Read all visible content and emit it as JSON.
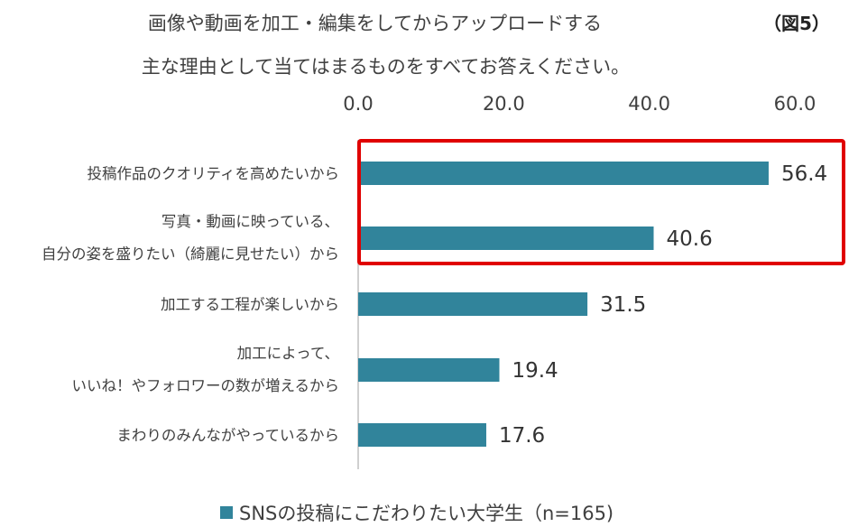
{
  "title_line1": "画像や動画を加工・編集をしてからアップロードする",
  "title_line2": "主な理由として当てはまるものをすべてお答えください。",
  "figure_label": "（図5）",
  "legend_label": "SNSの投稿にこだわりたい大学生（n=165)",
  "colors": {
    "bar": "#31849B",
    "highlight": "#E00000",
    "axis": "#bfbfbf"
  },
  "chart_data": {
    "type": "bar",
    "orientation": "horizontal",
    "xlim": [
      0,
      60
    ],
    "tick_labels": [
      "0.0",
      "20.0",
      "40.0",
      "60.0"
    ],
    "tick_values": [
      0,
      20,
      40,
      60
    ],
    "categories": [
      [
        "投稿作品のクオリティを高めたいから"
      ],
      [
        "写真・動画に映っている、",
        "自分の姿を盛りたい（綺麗に見せたい）から"
      ],
      [
        "加工する工程が楽しいから"
      ],
      [
        "加工によって、",
        "いいね！やフォロワーの数が増えるから"
      ],
      [
        "まわりのみんながやっているから"
      ]
    ],
    "series": [
      {
        "name": "SNSの投稿にこだわりたい大学生（n=165)",
        "values": [
          56.4,
          40.6,
          31.5,
          19.4,
          17.6
        ]
      }
    ],
    "value_labels": [
      "56.4",
      "40.6",
      "31.5",
      "19.4",
      "17.6"
    ],
    "highlighted_categories": [
      0,
      1
    ]
  }
}
